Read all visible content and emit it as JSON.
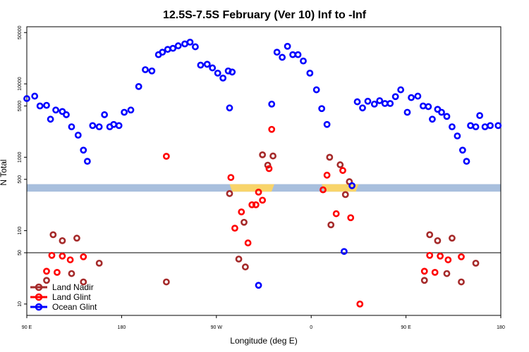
{
  "chart_data": {
    "type": "scatter",
    "title": "12.5S-7.5S February (Ver 10)   Inf to -Inf",
    "xlabel": "Longitude (deg E)",
    "ylabel": "N Total",
    "yscale": "log",
    "xlim": [
      0,
      360
    ],
    "ylim": [
      7,
      60000
    ],
    "x_ticks": [
      {
        "v": 0,
        "label": "90 E"
      },
      {
        "v": 72,
        "label": "180"
      },
      {
        "v": 144,
        "label": "90 W"
      },
      {
        "v": 216,
        "label": "0"
      },
      {
        "v": 288,
        "label": "90 E"
      },
      {
        "v": 360,
        "label": "180"
      }
    ],
    "y_ticks": [
      {
        "v": 10,
        "label": "10"
      },
      {
        "v": 50,
        "label": "50"
      },
      {
        "v": 100,
        "label": "100"
      },
      {
        "v": 500,
        "label": "500"
      },
      {
        "v": 1000,
        "label": "1000"
      },
      {
        "v": 5000,
        "label": "5000"
      },
      {
        "v": 10000,
        "label": "10000"
      },
      {
        "v": 50000,
        "label": "50000"
      }
    ],
    "reference_line": 50,
    "band": {
      "y_low": 340,
      "y_high": 430,
      "color": "#a8bfdd",
      "land_color": "#f8d46a",
      "land_segments": [
        [
          154,
          188
        ],
        [
          224,
          252
        ]
      ]
    },
    "series": [
      {
        "name": "Land Nadir",
        "color": "#a52a2a",
        "points": [
          [
            20,
            88
          ],
          [
            27,
            73
          ],
          [
            38,
            79
          ],
          [
            15,
            21
          ],
          [
            34,
            26
          ],
          [
            43,
            20
          ],
          [
            55,
            36
          ],
          [
            106,
            20
          ],
          [
            154,
            320
          ],
          [
            161,
            41
          ],
          [
            166,
            32
          ],
          [
            165,
            130
          ],
          [
            179,
            1080
          ],
          [
            183,
            780
          ],
          [
            187,
            1040
          ],
          [
            230,
            1000
          ],
          [
            231,
            120
          ],
          [
            238,
            790
          ],
          [
            242,
            310
          ],
          [
            245,
            465
          ],
          [
            306,
            88
          ],
          [
            312,
            73
          ],
          [
            323,
            79
          ],
          [
            302,
            21
          ],
          [
            319,
            26
          ],
          [
            330,
            20
          ],
          [
            341,
            36
          ]
        ]
      },
      {
        "name": "Land Glint",
        "color": "#ff0000",
        "points": [
          [
            15,
            28
          ],
          [
            19,
            46
          ],
          [
            23,
            27
          ],
          [
            27,
            45
          ],
          [
            33,
            40
          ],
          [
            43,
            44
          ],
          [
            106,
            1030
          ],
          [
            155,
            530
          ],
          [
            158,
            108
          ],
          [
            163,
            180
          ],
          [
            168,
            68
          ],
          [
            171,
            225
          ],
          [
            174,
            225
          ],
          [
            176,
            335
          ],
          [
            179,
            260
          ],
          [
            184,
            700
          ],
          [
            186,
            2400
          ],
          [
            225,
            360
          ],
          [
            228,
            570
          ],
          [
            235,
            170
          ],
          [
            240,
            660
          ],
          [
            246,
            150
          ],
          [
            253,
            10
          ],
          [
            302,
            28
          ],
          [
            306,
            46
          ],
          [
            310,
            27
          ],
          [
            314,
            45
          ],
          [
            320,
            40
          ],
          [
            330,
            44
          ]
        ]
      },
      {
        "name": "Ocean Glint",
        "color": "#0000ff",
        "points": [
          [
            0,
            6300
          ],
          [
            6,
            6800
          ],
          [
            10,
            5000
          ],
          [
            15,
            5100
          ],
          [
            18,
            3300
          ],
          [
            22,
            4400
          ],
          [
            27,
            4200
          ],
          [
            30,
            3800
          ],
          [
            34,
            2600
          ],
          [
            39,
            2000
          ],
          [
            43,
            1250
          ],
          [
            46,
            880
          ],
          [
            50,
            2700
          ],
          [
            55,
            2600
          ],
          [
            59,
            3800
          ],
          [
            63,
            2600
          ],
          [
            66,
            2800
          ],
          [
            70,
            2700
          ],
          [
            74,
            4100
          ],
          [
            79,
            4400
          ],
          [
            85,
            9200
          ],
          [
            90,
            15600
          ],
          [
            95,
            15000
          ],
          [
            100,
            25000
          ],
          [
            103,
            27000
          ],
          [
            107,
            29500
          ],
          [
            111,
            30500
          ],
          [
            115,
            33000
          ],
          [
            120,
            35000
          ],
          [
            124,
            37000
          ],
          [
            128,
            32000
          ],
          [
            132,
            18000
          ],
          [
            137,
            18500
          ],
          [
            141,
            16500
          ],
          [
            145,
            14000
          ],
          [
            149,
            12000
          ],
          [
            153,
            15000
          ],
          [
            156,
            14500
          ],
          [
            154,
            4700
          ],
          [
            176,
            18
          ],
          [
            186,
            5300
          ],
          [
            190,
            27000
          ],
          [
            194,
            23000
          ],
          [
            198,
            32500
          ],
          [
            202,
            25000
          ],
          [
            206,
            25000
          ],
          [
            210,
            20500
          ],
          [
            215,
            14000
          ],
          [
            220,
            8300
          ],
          [
            224,
            4600
          ],
          [
            228,
            2800
          ],
          [
            241,
            52
          ],
          [
            247,
            410
          ],
          [
            251,
            5700
          ],
          [
            255,
            4700
          ],
          [
            259,
            5800
          ],
          [
            264,
            5300
          ],
          [
            268,
            5900
          ],
          [
            272,
            5400
          ],
          [
            276,
            5400
          ],
          [
            280,
            6700
          ],
          [
            284,
            8300
          ],
          [
            289,
            4100
          ],
          [
            292,
            6500
          ],
          [
            297,
            6800
          ],
          [
            301,
            5000
          ],
          [
            305,
            4900
          ],
          [
            308,
            3300
          ],
          [
            312,
            4500
          ],
          [
            315,
            4100
          ],
          [
            319,
            3600
          ],
          [
            323,
            2600
          ],
          [
            327,
            1950
          ],
          [
            331,
            1250
          ],
          [
            334,
            880
          ],
          [
            337,
            2700
          ],
          [
            341,
            2600
          ],
          [
            344,
            3700
          ],
          [
            348,
            2600
          ],
          [
            352,
            2700
          ],
          [
            358,
            2700
          ]
        ]
      }
    ],
    "legend_position": "bottom-left"
  }
}
